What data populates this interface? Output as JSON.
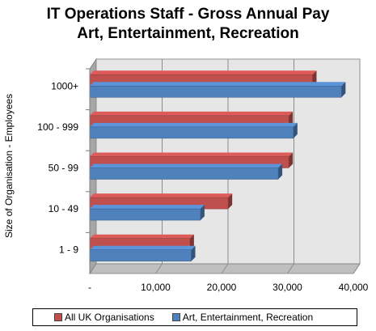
{
  "chart_data": {
    "type": "bar",
    "orientation": "horizontal",
    "title": "IT Operations Staff - Gross Annual Pay",
    "subtitle": "Art, Entertainment, Recreation",
    "ylabel": "Size of Organisation - Employees",
    "xlabel": "",
    "categories": [
      "1000+",
      "100 - 999",
      "50 - 99",
      "10 - 49",
      "1 - 9"
    ],
    "series": [
      {
        "name": "All UK Organisations",
        "color": "#c0504d",
        "values": [
          33800,
          30200,
          30200,
          21000,
          15200
        ]
      },
      {
        "name": "Art, Entertainment,  Recreation",
        "color": "#4f81bd",
        "values": [
          38200,
          30900,
          28600,
          16800,
          15400
        ]
      }
    ],
    "xlim": [
      0,
      40000
    ],
    "xticks": [
      "-",
      "10,000",
      "20,000",
      "30,000",
      "40,000"
    ],
    "grid": true,
    "legend_position": "bottom",
    "three_d": true
  }
}
